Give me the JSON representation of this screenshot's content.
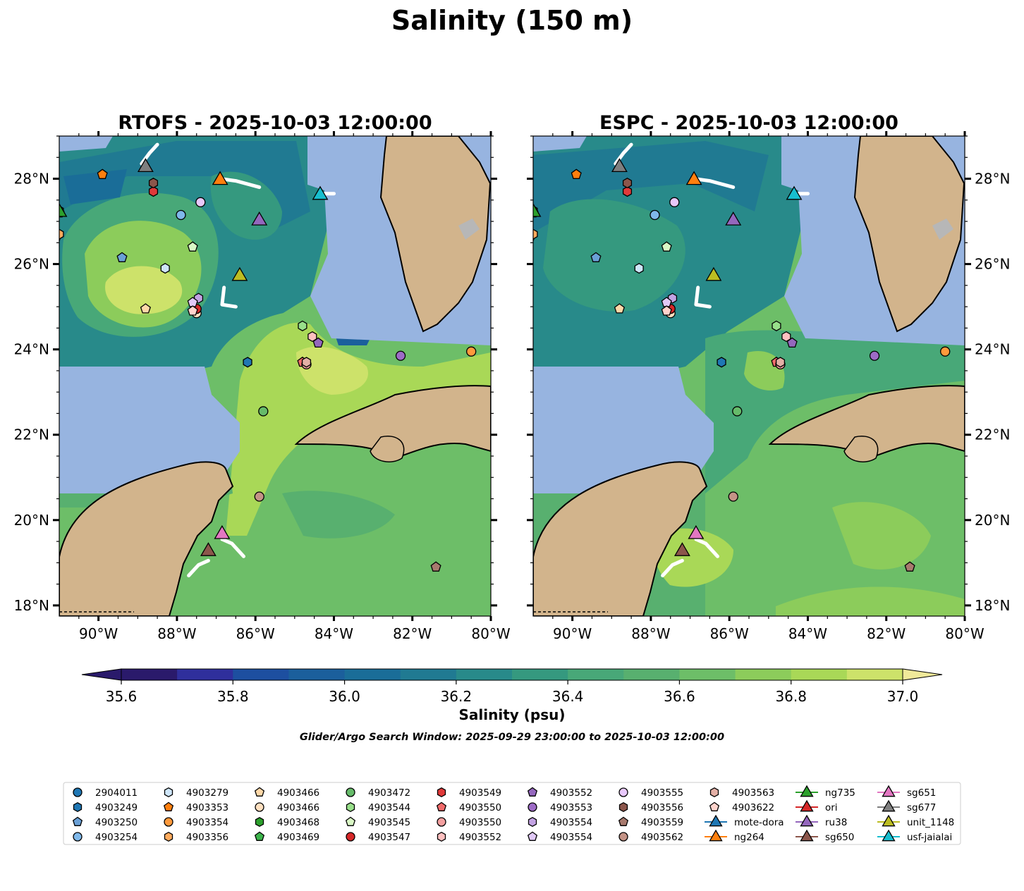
{
  "figure": {
    "title": "Salinity (150 m)",
    "caption": "Glider/Argo Search Window: 2025-09-29 23:00:00 to 2025-10-03 12:00:00"
  },
  "panels": [
    {
      "title": "RTOFS - 2025-10-03 12:00:00",
      "model": "RTOFS",
      "time": "2025-10-03 12:00:00"
    },
    {
      "title": "ESPC - 2025-10-03 12:00:00",
      "model": "ESPC",
      "time": "2025-10-03 12:00:00"
    }
  ],
  "axes": {
    "lon_ticks": [
      -90,
      -88,
      -86,
      -84,
      -82,
      -80
    ],
    "lon_tick_labels": [
      "90°W",
      "88°W",
      "86°W",
      "84°W",
      "82°W",
      "80°W"
    ],
    "lat_ticks": [
      18,
      20,
      22,
      24,
      26,
      28
    ],
    "lat_tick_labels": [
      "18°N",
      "20°N",
      "22°N",
      "24°N",
      "26°N",
      "28°N"
    ],
    "lon_range": [
      -91.0,
      -80.0
    ],
    "lat_range": [
      17.75,
      29.0
    ]
  },
  "colorbar": {
    "label": "Salinity (psu)",
    "tick_values": [
      35.6,
      35.8,
      36.0,
      36.2,
      36.4,
      36.6,
      36.8,
      37.0
    ],
    "tick_labels": [
      "35.6",
      "35.8",
      "36.0",
      "36.2",
      "36.4",
      "36.6",
      "36.8",
      "37.0"
    ],
    "levels": [
      35.6,
      35.7,
      35.8,
      35.9,
      36.0,
      36.1,
      36.2,
      36.3,
      36.4,
      36.5,
      36.6,
      36.7,
      36.8,
      36.9,
      37.0
    ],
    "colors": [
      "#2a1a6b",
      "#2f2f9c",
      "#1d4fa0",
      "#1b5f9c",
      "#1a6d98",
      "#207a92",
      "#288a8a",
      "#35997f",
      "#48a878",
      "#58b06f",
      "#6dbe68",
      "#8ccc5b",
      "#a9d857",
      "#cde26a"
    ],
    "under_color": "#2a1a6b",
    "over_color": "#f0e99a",
    "extend": "both"
  },
  "colors": {
    "land": "#d2b48c",
    "shallow_water": "#97b4e0",
    "track": "#ffffff"
  },
  "chart_data": {
    "type": "map",
    "variable": "Salinity",
    "depth": "150 m",
    "units": "psu",
    "argo": [
      {
        "id": "2904011",
        "marker": "circle",
        "color": "#1f77b4",
        "lon": -91.1,
        "lat": 26.6
      },
      {
        "id": "4903249",
        "marker": "hexagon",
        "color": "#1f77b4",
        "lon": -86.2,
        "lat": 23.7
      },
      {
        "id": "4903250",
        "marker": "pentagon",
        "color": "#6aa0d6",
        "lon": -89.4,
        "lat": 26.15
      },
      {
        "id": "4903254",
        "marker": "circle",
        "color": "#7fb8ea",
        "lon": -87.9,
        "lat": 27.15
      },
      {
        "id": "4903279",
        "marker": "hexagon",
        "color": "#cfe6fa",
        "lon": -88.3,
        "lat": 25.9
      },
      {
        "id": "4903353",
        "marker": "pentagon",
        "color": "#ff7f0e",
        "lon": -89.9,
        "lat": 28.1
      },
      {
        "id": "4903354",
        "marker": "circle",
        "color": "#ff9a3c",
        "lon": -80.5,
        "lat": 23.95
      },
      {
        "id": "4903356",
        "marker": "hexagon",
        "color": "#ffab5e",
        "lon": -91.0,
        "lat": 26.7
      },
      {
        "id": "4903466",
        "marker": "pentagon",
        "color": "#ffd8a8",
        "lon": -88.8,
        "lat": 24.95
      },
      {
        "id": "4903466",
        "marker": "circle",
        "color": "#ffe0c0",
        "lon": -87.5,
        "lat": 24.85
      },
      {
        "id": "4903468",
        "marker": "hexagon",
        "color": "#2ca02c",
        "lon": -91.0,
        "lat": 27.25
      },
      {
        "id": "4903469",
        "marker": "pentagon",
        "color": "#3cb44b",
        "lon": -91.0,
        "lat": 27.2
      },
      {
        "id": "4903472",
        "marker": "circle",
        "color": "#66bb6a",
        "lon": -85.8,
        "lat": 22.55
      },
      {
        "id": "4903544",
        "marker": "hexagon",
        "color": "#98df8a",
        "lon": -84.8,
        "lat": 24.55
      },
      {
        "id": "4903545",
        "marker": "pentagon",
        "color": "#d9f7c5",
        "lon": -87.6,
        "lat": 26.4
      },
      {
        "id": "4903547",
        "marker": "circle",
        "color": "#d62728",
        "lon": -87.5,
        "lat": 24.95
      },
      {
        "id": "4903549",
        "marker": "hexagon",
        "color": "#e03a3a",
        "lon": -88.6,
        "lat": 27.7
      },
      {
        "id": "4903550",
        "marker": "pentagon",
        "color": "#f06a6a",
        "lon": -84.8,
        "lat": 23.7
      },
      {
        "id": "4903550",
        "marker": "circle",
        "color": "#f4a0a0",
        "lon": -84.7,
        "lat": 23.65
      },
      {
        "id": "4903552",
        "marker": "hexagon",
        "color": "#ffc0c0",
        "lon": -84.55,
        "lat": 24.3
      },
      {
        "id": "4903552",
        "marker": "pentagon",
        "color": "#9467bd",
        "lon": -84.4,
        "lat": 24.15
      },
      {
        "id": "4903553",
        "marker": "circle",
        "color": "#9d6bc6",
        "lon": -82.3,
        "lat": 23.85
      },
      {
        "id": "4903554",
        "marker": "hexagon",
        "color": "#c3a3e3",
        "lon": -87.45,
        "lat": 25.2
      },
      {
        "id": "4903554",
        "marker": "pentagon",
        "color": "#e1c9f7",
        "lon": -87.6,
        "lat": 25.1
      },
      {
        "id": "4903555",
        "marker": "circle",
        "color": "#e8c8fb",
        "lon": -87.4,
        "lat": 27.45
      },
      {
        "id": "4903556",
        "marker": "hexagon",
        "color": "#8c564b",
        "lon": -88.6,
        "lat": 27.9
      },
      {
        "id": "4903559",
        "marker": "pentagon",
        "color": "#a87a6e",
        "lon": -81.4,
        "lat": 18.9
      },
      {
        "id": "4903562",
        "marker": "circle",
        "color": "#c49386",
        "lon": -85.9,
        "lat": 20.55
      },
      {
        "id": "4903563",
        "marker": "hexagon",
        "color": "#e4b0a6",
        "lon": -84.7,
        "lat": 23.7
      },
      {
        "id": "4903622",
        "marker": "pentagon",
        "color": "#ffd3cc",
        "lon": -87.6,
        "lat": 24.9
      }
    ],
    "gliders": [
      {
        "id": "mote-dora",
        "color": "#1f77b4",
        "lon": null,
        "lat": null
      },
      {
        "id": "ng264",
        "color": "#ff7f0e",
        "lon": -86.9,
        "lat": 28.0,
        "track": [
          [
            -86.9,
            28.0
          ],
          [
            -86.5,
            27.95
          ],
          [
            -85.9,
            27.8
          ]
        ]
      },
      {
        "id": "ng735",
        "color": "#2ca02c",
        "lon": -91.0,
        "lat": 27.25
      },
      {
        "id": "ori",
        "color": "#d62728",
        "lon": null,
        "lat": null
      },
      {
        "id": "ru38",
        "color": "#9467bd",
        "lon": -85.9,
        "lat": 27.05
      },
      {
        "id": "sg650",
        "color": "#8c564b",
        "lon": -87.2,
        "lat": 19.3,
        "track": [
          [
            -87.2,
            19.05
          ],
          [
            -87.45,
            18.95
          ],
          [
            -87.7,
            18.7
          ]
        ]
      },
      {
        "id": "sg651",
        "color": "#e377c2",
        "lon": -86.85,
        "lat": 19.7,
        "track": [
          [
            -86.85,
            19.55
          ],
          [
            -86.6,
            19.45
          ],
          [
            -86.3,
            19.15
          ]
        ]
      },
      {
        "id": "sg677",
        "color": "#7f7f7f",
        "lon": -88.8,
        "lat": 28.3,
        "track": [
          [
            -88.9,
            28.35
          ],
          [
            -88.7,
            28.6
          ],
          [
            -88.5,
            28.8
          ]
        ]
      },
      {
        "id": "unit_1148",
        "color": "#bcbd22",
        "lon": -86.4,
        "lat": 25.75,
        "track": [
          [
            -86.8,
            25.45
          ],
          [
            -86.85,
            25.05
          ],
          [
            -86.5,
            25.0
          ]
        ]
      },
      {
        "id": "usf-jaialai",
        "color": "#17becf",
        "lon": -84.35,
        "lat": 27.65,
        "track": [
          [
            -84.3,
            27.65
          ],
          [
            -84.0,
            27.65
          ]
        ]
      }
    ]
  },
  "legend": [
    {
      "label": "2904011",
      "marker": "circle",
      "color": "#1f77b4"
    },
    {
      "label": "4903249",
      "marker": "hexagon",
      "color": "#1f77b4"
    },
    {
      "label": "4903250",
      "marker": "pentagon",
      "color": "#6aa0d6"
    },
    {
      "label": "4903254",
      "marker": "circle",
      "color": "#7fb8ea"
    },
    {
      "label": "4903279",
      "marker": "hexagon",
      "color": "#cfe6fa"
    },
    {
      "label": "4903353",
      "marker": "pentagon",
      "color": "#ff7f0e"
    },
    {
      "label": "4903354",
      "marker": "circle",
      "color": "#ff9a3c"
    },
    {
      "label": "4903356",
      "marker": "hexagon",
      "color": "#ffab5e"
    },
    {
      "label": "4903466",
      "marker": "pentagon",
      "color": "#ffd8a8"
    },
    {
      "label": "4903466",
      "marker": "circle",
      "color": "#ffe0c0"
    },
    {
      "label": "4903468",
      "marker": "hexagon",
      "color": "#2ca02c"
    },
    {
      "label": "4903469",
      "marker": "pentagon",
      "color": "#3cb44b"
    },
    {
      "label": "4903472",
      "marker": "circle",
      "color": "#66bb6a"
    },
    {
      "label": "4903544",
      "marker": "hexagon",
      "color": "#98df8a"
    },
    {
      "label": "4903545",
      "marker": "pentagon",
      "color": "#d9f7c5"
    },
    {
      "label": "4903547",
      "marker": "circle",
      "color": "#d62728"
    },
    {
      "label": "4903549",
      "marker": "hexagon",
      "color": "#e03a3a"
    },
    {
      "label": "4903550",
      "marker": "pentagon",
      "color": "#f06a6a"
    },
    {
      "label": "4903550",
      "marker": "circle",
      "color": "#f4a0a0"
    },
    {
      "label": "4903552",
      "marker": "hexagon",
      "color": "#ffc0c0"
    },
    {
      "label": "4903552",
      "marker": "pentagon",
      "color": "#9467bd"
    },
    {
      "label": "4903553",
      "marker": "circle",
      "color": "#9d6bc6"
    },
    {
      "label": "4903554",
      "marker": "hexagon",
      "color": "#c3a3e3"
    },
    {
      "label": "4903554",
      "marker": "pentagon",
      "color": "#e1c9f7"
    },
    {
      "label": "4903555",
      "marker": "circle",
      "color": "#e8c8fb"
    },
    {
      "label": "4903556",
      "marker": "hexagon",
      "color": "#8c564b"
    },
    {
      "label": "4903559",
      "marker": "pentagon",
      "color": "#a87a6e"
    },
    {
      "label": "4903562",
      "marker": "circle",
      "color": "#c49386"
    },
    {
      "label": "4903563",
      "marker": "hexagon",
      "color": "#e4b0a6"
    },
    {
      "label": "4903622",
      "marker": "pentagon",
      "color": "#ffd3cc"
    },
    {
      "label": "mote-dora",
      "marker": "line-triangle",
      "color": "#1f77b4"
    },
    {
      "label": "ng264",
      "marker": "line-triangle",
      "color": "#ff7f0e"
    },
    {
      "label": "ng735",
      "marker": "line-triangle",
      "color": "#2ca02c"
    },
    {
      "label": "ori",
      "marker": "line-triangle",
      "color": "#d62728"
    },
    {
      "label": "ru38",
      "marker": "line-triangle",
      "color": "#9467bd"
    },
    {
      "label": "sg650",
      "marker": "line-triangle",
      "color": "#8c564b"
    },
    {
      "label": "sg651",
      "marker": "line-triangle",
      "color": "#e377c2"
    },
    {
      "label": "sg677",
      "marker": "line-triangle",
      "color": "#7f7f7f"
    },
    {
      "label": "unit_1148",
      "marker": "line-triangle",
      "color": "#bcbd22"
    },
    {
      "label": "usf-jaialai",
      "marker": "line-triangle",
      "color": "#17becf"
    }
  ]
}
